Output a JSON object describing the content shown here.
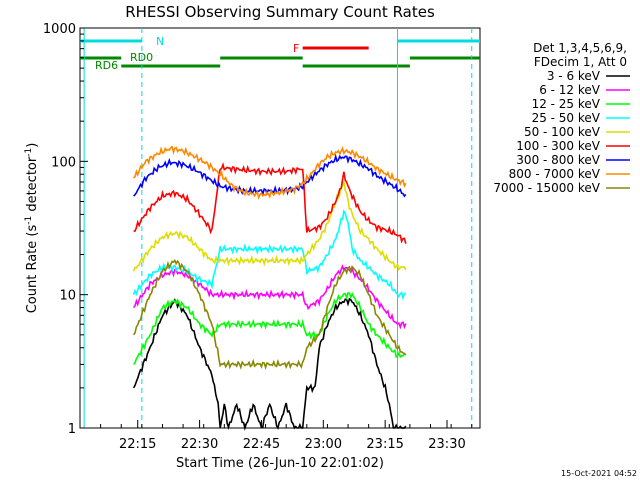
{
  "chart_data": {
    "type": "line",
    "title": "RHESSI Observing Summary Count Rates",
    "xlabel": "Start Time (26-Jun-10 22:01:02)",
    "ylabel_main": "Count Rate (s",
    "ylabel_sup1": "-1",
    "ylabel_mid": " detector",
    "ylabel_sup2": "-1",
    "ylabel_end": ")",
    "ylog": true,
    "ylim": [
      1,
      1000
    ],
    "xlim_minutes": [
      0,
      97
    ],
    "x_ticks": [
      {
        "m": 14,
        "label": "22:15"
      },
      {
        "m": 29,
        "label": "22:30"
      },
      {
        "m": 44,
        "label": "22:45"
      },
      {
        "m": 59,
        "label": "23:00"
      },
      {
        "m": 74,
        "label": "23:15"
      },
      {
        "m": 89,
        "label": "23:30"
      }
    ],
    "y_ticks": [
      {
        "v": 1,
        "label": "1"
      },
      {
        "v": 10,
        "label": "10"
      },
      {
        "v": 100,
        "label": "100"
      },
      {
        "v": 1000,
        "label": "1000"
      }
    ],
    "legend_title": [
      "Det 1,3,4,5,6,9,",
      "FDecim 1, Att 0"
    ],
    "series": [
      {
        "name": "3 - 6 keV",
        "color": "#000000",
        "points": [
          [
            13,
            2
          ],
          [
            17,
            4
          ],
          [
            20,
            7
          ],
          [
            23,
            9
          ],
          [
            26,
            7
          ],
          [
            29,
            4
          ],
          [
            32,
            2.5
          ],
          [
            33.5,
            1.5
          ],
          [
            34,
            1
          ],
          [
            35,
            1.5
          ],
          [
            36,
            1
          ],
          [
            38,
            1.5
          ],
          [
            40,
            1
          ],
          [
            42,
            1.5
          ],
          [
            44,
            1
          ],
          [
            46,
            1.5
          ],
          [
            48,
            1
          ],
          [
            50,
            1.5
          ],
          [
            52,
            1
          ],
          [
            54,
            1
          ],
          [
            55,
            2
          ],
          [
            57,
            2
          ],
          [
            58,
            4
          ],
          [
            60,
            6
          ],
          [
            62,
            8
          ],
          [
            64,
            9
          ],
          [
            66,
            9
          ],
          [
            68,
            7
          ],
          [
            70,
            5
          ],
          [
            72,
            3
          ],
          [
            74,
            2
          ],
          [
            75,
            1.5
          ],
          [
            76,
            1
          ],
          [
            77,
            1
          ],
          [
            79,
            1
          ]
        ]
      },
      {
        "name": "6 - 12 keV",
        "color": "#ff00ff",
        "points": [
          [
            13,
            8
          ],
          [
            17,
            12
          ],
          [
            20,
            14
          ],
          [
            23,
            15
          ],
          [
            26,
            14
          ],
          [
            29,
            12
          ],
          [
            32,
            10
          ],
          [
            34,
            10
          ],
          [
            44,
            10
          ],
          [
            54,
            10
          ],
          [
            55,
            8
          ],
          [
            58,
            9
          ],
          [
            60,
            11
          ],
          [
            62,
            14
          ],
          [
            64,
            16
          ],
          [
            66,
            15
          ],
          [
            68,
            13
          ],
          [
            70,
            11
          ],
          [
            72,
            9
          ],
          [
            75,
            7
          ],
          [
            77,
            6
          ],
          [
            79,
            6
          ]
        ]
      },
      {
        "name": "12 - 25 keV",
        "color": "#00ff00",
        "points": [
          [
            13,
            3
          ],
          [
            17,
            5
          ],
          [
            20,
            8
          ],
          [
            23,
            9
          ],
          [
            26,
            8
          ],
          [
            29,
            6
          ],
          [
            32,
            5
          ],
          [
            34,
            6
          ],
          [
            44,
            6
          ],
          [
            54,
            6
          ],
          [
            55,
            5
          ],
          [
            58,
            5
          ],
          [
            60,
            7
          ],
          [
            62,
            9
          ],
          [
            64,
            10
          ],
          [
            66,
            10
          ],
          [
            68,
            8
          ],
          [
            70,
            6
          ],
          [
            72,
            5
          ],
          [
            75,
            4
          ],
          [
            77,
            3.5
          ],
          [
            79,
            3.5
          ]
        ]
      },
      {
        "name": "25 - 50 keV",
        "color": "#00ffff",
        "points": [
          [
            13,
            10
          ],
          [
            17,
            14
          ],
          [
            20,
            16
          ],
          [
            23,
            16
          ],
          [
            26,
            15
          ],
          [
            29,
            13
          ],
          [
            32,
            12
          ],
          [
            34,
            22
          ],
          [
            44,
            22
          ],
          [
            54,
            22
          ],
          [
            55,
            15
          ],
          [
            58,
            16
          ],
          [
            60,
            20
          ],
          [
            62,
            26
          ],
          [
            64,
            42
          ],
          [
            65,
            35
          ],
          [
            66,
            22
          ],
          [
            68,
            18
          ],
          [
            70,
            16
          ],
          [
            72,
            14
          ],
          [
            75,
            12
          ],
          [
            77,
            10
          ],
          [
            79,
            10
          ]
        ]
      },
      {
        "name": "50 - 100 keV",
        "color": "#dddd00",
        "points": [
          [
            13,
            15
          ],
          [
            17,
            22
          ],
          [
            20,
            27
          ],
          [
            23,
            29
          ],
          [
            26,
            27
          ],
          [
            29,
            22
          ],
          [
            32,
            18
          ],
          [
            34,
            18
          ],
          [
            44,
            18
          ],
          [
            54,
            18
          ],
          [
            55,
            20
          ],
          [
            58,
            26
          ],
          [
            60,
            34
          ],
          [
            62,
            50
          ],
          [
            63,
            58
          ],
          [
            64,
            70
          ],
          [
            65,
            50
          ],
          [
            66,
            40
          ],
          [
            68,
            30
          ],
          [
            70,
            26
          ],
          [
            72,
            22
          ],
          [
            75,
            18
          ],
          [
            77,
            16
          ],
          [
            79,
            16
          ]
        ]
      },
      {
        "name": "100 - 300 keV",
        "color": "#ff0000",
        "points": [
          [
            13,
            30
          ],
          [
            17,
            45
          ],
          [
            20,
            55
          ],
          [
            23,
            58
          ],
          [
            26,
            52
          ],
          [
            29,
            40
          ],
          [
            32,
            30
          ],
          [
            34,
            90
          ],
          [
            40,
            86
          ],
          [
            44,
            84
          ],
          [
            50,
            84
          ],
          [
            54,
            88
          ],
          [
            55,
            30
          ],
          [
            58,
            32
          ],
          [
            60,
            38
          ],
          [
            62,
            50
          ],
          [
            63,
            60
          ],
          [
            64,
            80
          ],
          [
            65,
            65
          ],
          [
            66,
            55
          ],
          [
            68,
            42
          ],
          [
            70,
            36
          ],
          [
            72,
            32
          ],
          [
            75,
            30
          ],
          [
            77,
            28
          ],
          [
            79,
            25
          ]
        ]
      },
      {
        "name": "300 - 800 keV",
        "color": "#0000ff",
        "points": [
          [
            13,
            55
          ],
          [
            16,
            75
          ],
          [
            19,
            90
          ],
          [
            22,
            98
          ],
          [
            25,
            95
          ],
          [
            28,
            86
          ],
          [
            31,
            75
          ],
          [
            34,
            65
          ],
          [
            37,
            62
          ],
          [
            40,
            60
          ],
          [
            44,
            60
          ],
          [
            48,
            60
          ],
          [
            52,
            62
          ],
          [
            54,
            65
          ],
          [
            56,
            75
          ],
          [
            58,
            85
          ],
          [
            60,
            95
          ],
          [
            62,
            103
          ],
          [
            64,
            108
          ],
          [
            66,
            103
          ],
          [
            68,
            95
          ],
          [
            70,
            88
          ],
          [
            72,
            78
          ],
          [
            75,
            68
          ],
          [
            77,
            62
          ],
          [
            79,
            55
          ]
        ]
      },
      {
        "name": "800 - 7000 keV",
        "color": "#ff8800",
        "points": [
          [
            13,
            75
          ],
          [
            16,
            100
          ],
          [
            19,
            115
          ],
          [
            22,
            125
          ],
          [
            25,
            120
          ],
          [
            28,
            108
          ],
          [
            31,
            95
          ],
          [
            34,
            80
          ],
          [
            37,
            65
          ],
          [
            40,
            58
          ],
          [
            44,
            56
          ],
          [
            48,
            58
          ],
          [
            52,
            62
          ],
          [
            54,
            68
          ],
          [
            56,
            80
          ],
          [
            58,
            95
          ],
          [
            60,
            108
          ],
          [
            62,
            116
          ],
          [
            64,
            120
          ],
          [
            66,
            116
          ],
          [
            68,
            108
          ],
          [
            70,
            98
          ],
          [
            72,
            88
          ],
          [
            75,
            78
          ],
          [
            77,
            72
          ],
          [
            79,
            68
          ]
        ]
      },
      {
        "name": "7000 - 15000 keV",
        "color": "#888800",
        "points": [
          [
            13,
            5
          ],
          [
            17,
            10
          ],
          [
            20,
            15
          ],
          [
            23,
            18
          ],
          [
            26,
            15
          ],
          [
            29,
            10
          ],
          [
            32,
            6
          ],
          [
            34,
            3
          ],
          [
            44,
            3
          ],
          [
            54,
            3
          ],
          [
            55,
            4
          ],
          [
            58,
            5
          ],
          [
            60,
            8
          ],
          [
            62,
            12
          ],
          [
            64,
            15
          ],
          [
            66,
            16
          ],
          [
            68,
            14
          ],
          [
            70,
            10
          ],
          [
            72,
            7
          ],
          [
            75,
            5
          ],
          [
            77,
            4
          ],
          [
            79,
            3.5
          ]
        ]
      }
    ],
    "annotations": {
      "night_label": "N",
      "flare_label": "F",
      "saa_label": "RD6",
      "rd0_label": "RD0",
      "timestamp": "15-Oct-2021 04:52"
    },
    "bars": {
      "night": [
        [
          0,
          15
        ],
        [
          77,
          97
        ]
      ],
      "flare": [
        [
          54,
          70
        ]
      ],
      "rd6": [
        [
          0,
          10
        ]
      ],
      "rd0": [
        [
          10,
          34
        ],
        [
          34,
          54
        ],
        [
          54,
          80
        ],
        [
          80,
          97
        ]
      ],
      "vlines_solid": [
        1,
        77
      ],
      "vlines_dashed": [
        15,
        95
      ]
    }
  }
}
